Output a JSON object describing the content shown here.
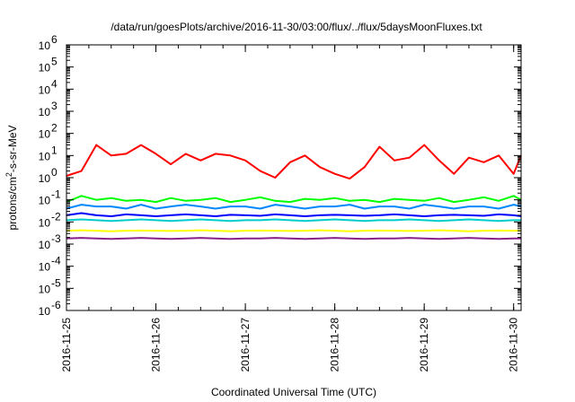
{
  "chart_data": {
    "type": "line",
    "title": "/data/run/goesPlots/archive/2016-11-30/03:00/flux/../flux/5daysMoonFluxes.txt",
    "xlabel": "Coordinated Universal Time (UTC)",
    "ylabel": "protons/cm²-s-sr-MeV",
    "y_scale": "log",
    "ylim": [
      1e-06,
      1000000.0
    ],
    "xlim": [
      "2016-11-25",
      "2016-11-30T02:00"
    ],
    "x_ticks": [
      "2016-11-25",
      "2016-11-26",
      "2016-11-27",
      "2016-11-28",
      "2016-11-29",
      "2016-11-30"
    ],
    "y_ticks": [
      {
        "base": "10",
        "exp": "-6",
        "value": 1e-06
      },
      {
        "base": "10",
        "exp": "-5",
        "value": 1e-05
      },
      {
        "base": "10",
        "exp": "-4",
        "value": 0.0001
      },
      {
        "base": "10",
        "exp": "-3",
        "value": 0.001
      },
      {
        "base": "10",
        "exp": "-2",
        "value": 0.01
      },
      {
        "base": "10",
        "exp": "-1",
        "value": 0.1
      },
      {
        "base": "10",
        "exp": "0",
        "value": 1
      },
      {
        "base": "10",
        "exp": "1",
        "value": 10
      },
      {
        "base": "10",
        "exp": "2",
        "value": 100
      },
      {
        "base": "10",
        "exp": "3",
        "value": 1000
      },
      {
        "base": "10",
        "exp": "4",
        "value": 10000
      },
      {
        "base": "10",
        "exp": "5",
        "value": 100000
      },
      {
        "base": "10",
        "exp": "6",
        "value": 1000000
      }
    ],
    "grid": false,
    "legend": "none",
    "x": [
      "2016-11-25T00:00",
      "2016-11-25T04:00",
      "2016-11-25T08:00",
      "2016-11-25T12:00",
      "2016-11-25T16:00",
      "2016-11-25T20:00",
      "2016-11-26T00:00",
      "2016-11-26T04:00",
      "2016-11-26T08:00",
      "2016-11-26T12:00",
      "2016-11-26T16:00",
      "2016-11-26T20:00",
      "2016-11-27T00:00",
      "2016-11-27T04:00",
      "2016-11-27T08:00",
      "2016-11-27T12:00",
      "2016-11-27T16:00",
      "2016-11-27T20:00",
      "2016-11-28T00:00",
      "2016-11-28T04:00",
      "2016-11-28T08:00",
      "2016-11-28T12:00",
      "2016-11-28T16:00",
      "2016-11-28T20:00",
      "2016-11-29T00:00",
      "2016-11-29T04:00",
      "2016-11-29T08:00",
      "2016-11-29T12:00",
      "2016-11-29T16:00",
      "2016-11-29T20:00",
      "2016-11-30T00:00",
      "2016-11-30T02:00"
    ],
    "series": [
      {
        "color": "#ff0000",
        "values": [
          1.2,
          2,
          30,
          10,
          12,
          30,
          12,
          4,
          12,
          6,
          12,
          10,
          6,
          2,
          1,
          5,
          10,
          3,
          1.5,
          0.9,
          3,
          25,
          6,
          8,
          30,
          6,
          1.5,
          8,
          5,
          10,
          1.5,
          10
        ]
      },
      {
        "color": "#00ff00",
        "values": [
          0.08,
          0.15,
          0.1,
          0.12,
          0.09,
          0.1,
          0.08,
          0.12,
          0.09,
          0.1,
          0.12,
          0.08,
          0.1,
          0.13,
          0.09,
          0.08,
          0.11,
          0.1,
          0.12,
          0.09,
          0.1,
          0.08,
          0.11,
          0.1,
          0.09,
          0.12,
          0.08,
          0.1,
          0.13,
          0.09,
          0.15,
          0.1
        ]
      },
      {
        "color": "#0088ff",
        "values": [
          0.04,
          0.06,
          0.05,
          0.05,
          0.04,
          0.06,
          0.04,
          0.05,
          0.06,
          0.05,
          0.04,
          0.05,
          0.05,
          0.04,
          0.06,
          0.05,
          0.04,
          0.05,
          0.05,
          0.06,
          0.04,
          0.05,
          0.05,
          0.04,
          0.06,
          0.05,
          0.04,
          0.05,
          0.05,
          0.04,
          0.06,
          0.05
        ]
      },
      {
        "color": "#0000ff",
        "values": [
          0.02,
          0.025,
          0.02,
          0.018,
          0.022,
          0.02,
          0.018,
          0.02,
          0.022,
          0.02,
          0.018,
          0.021,
          0.02,
          0.019,
          0.022,
          0.02,
          0.018,
          0.02,
          0.021,
          0.02,
          0.019,
          0.02,
          0.022,
          0.02,
          0.018,
          0.02,
          0.021,
          0.02,
          0.019,
          0.022,
          0.02,
          0.018
        ]
      },
      {
        "color": "#00cccc",
        "values": [
          0.012,
          0.013,
          0.012,
          0.011,
          0.012,
          0.013,
          0.012,
          0.011,
          0.012,
          0.013,
          0.012,
          0.011,
          0.012,
          0.012,
          0.013,
          0.012,
          0.011,
          0.012,
          0.013,
          0.012,
          0.011,
          0.012,
          0.012,
          0.013,
          0.012,
          0.011,
          0.012,
          0.013,
          0.012,
          0.011,
          0.012,
          0.012
        ]
      },
      {
        "color": "#ffff00",
        "values": [
          0.004,
          0.0042,
          0.004,
          0.0038,
          0.004,
          0.0041,
          0.004,
          0.0039,
          0.004,
          0.0042,
          0.004,
          0.0038,
          0.004,
          0.0041,
          0.004,
          0.0039,
          0.004,
          0.0042,
          0.004,
          0.0038,
          0.004,
          0.0041,
          0.004,
          0.0039,
          0.004,
          0.0042,
          0.004,
          0.0038,
          0.004,
          0.0041,
          0.004,
          0.004
        ]
      },
      {
        "color": "#882288",
        "values": [
          0.0018,
          0.0019,
          0.0018,
          0.0017,
          0.0018,
          0.0019,
          0.0018,
          0.0017,
          0.0018,
          0.0019,
          0.0018,
          0.0017,
          0.0018,
          0.0018,
          0.0019,
          0.0018,
          0.0017,
          0.0018,
          0.0019,
          0.0018,
          0.0017,
          0.0018,
          0.0018,
          0.0019,
          0.0018,
          0.0017,
          0.0018,
          0.0019,
          0.0018,
          0.0017,
          0.0018,
          0.0018
        ]
      }
    ]
  }
}
